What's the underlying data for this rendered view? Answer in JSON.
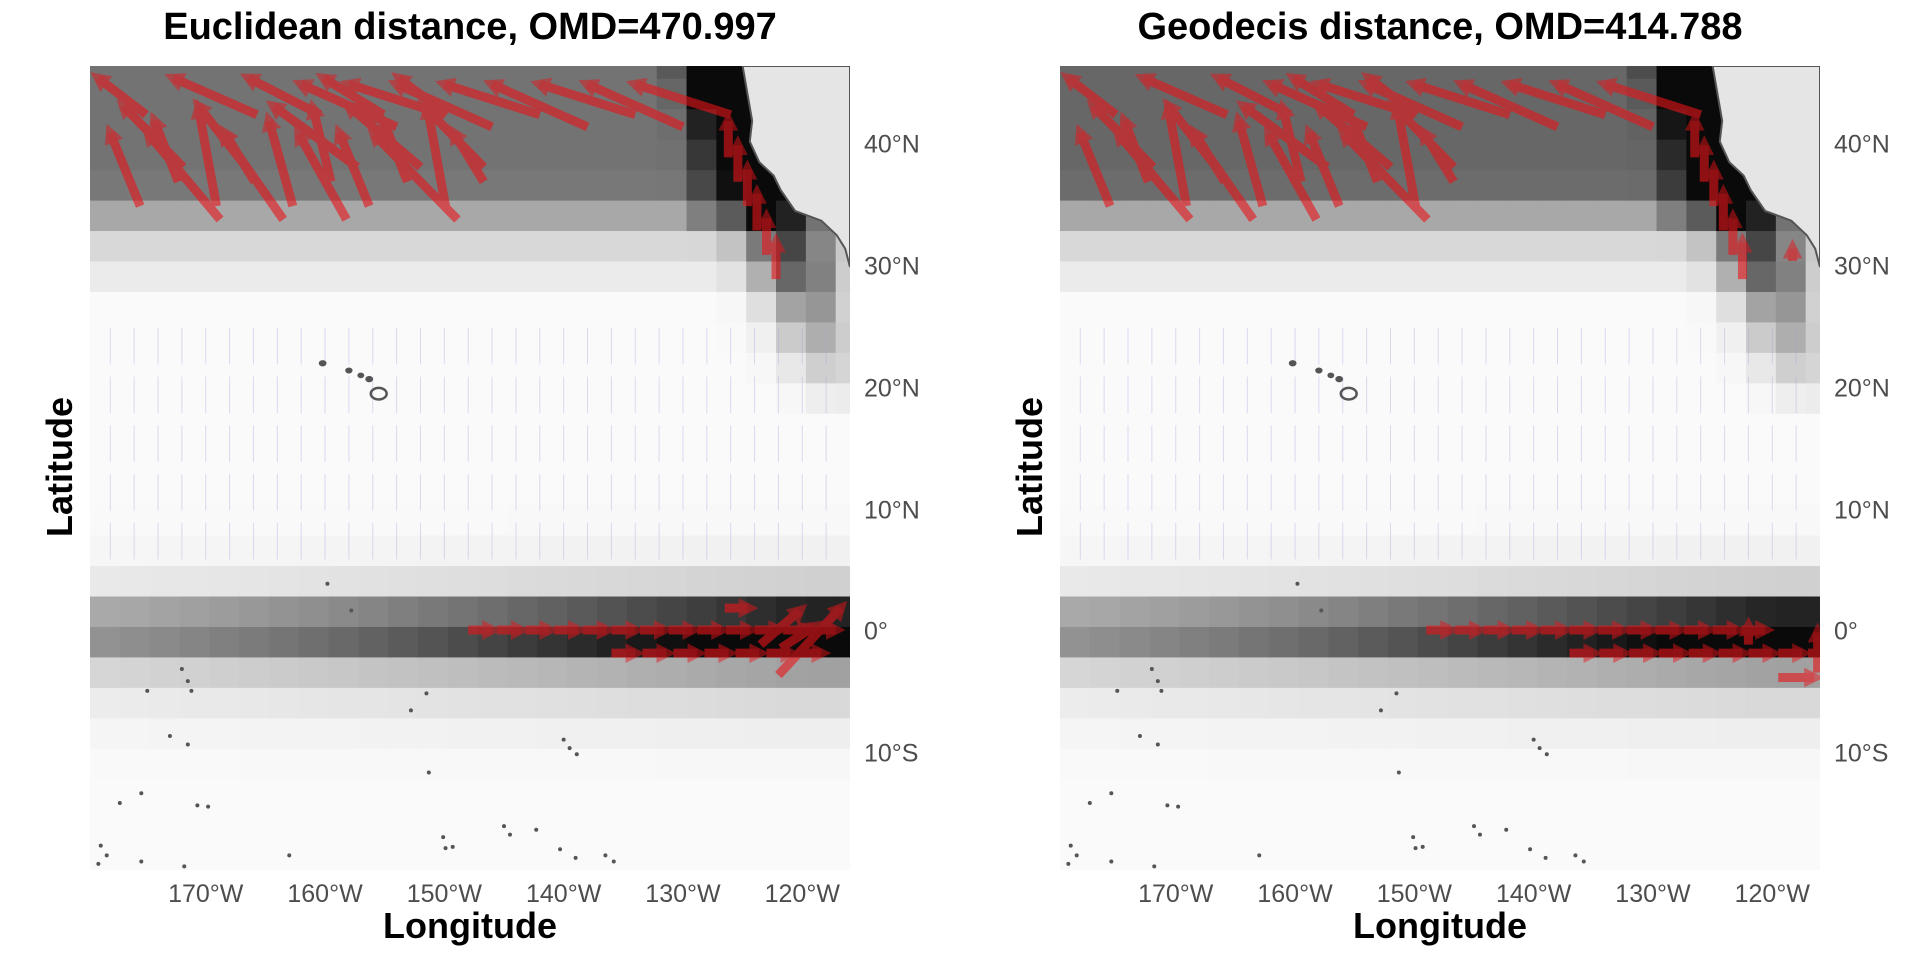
{
  "panels": [
    {
      "title": "Euclidean distance, OMD=470.997",
      "xlabel": "Longitude",
      "ylabel": "Latitude"
    },
    {
      "title": "Geodecis distance, OMD=414.788",
      "xlabel": "Longitude",
      "ylabel": "Latitude"
    }
  ],
  "axes": {
    "x_ticks": [
      {
        "value": -170,
        "label": "170°W"
      },
      {
        "value": -160,
        "label": "160°W"
      },
      {
        "value": -150,
        "label": "150°W"
      },
      {
        "value": -140,
        "label": "140°W"
      },
      {
        "value": -130,
        "label": "130°W"
      },
      {
        "value": -120,
        "label": "120°W"
      }
    ],
    "y_ticks": [
      {
        "value": 40,
        "label": "40°N"
      },
      {
        "value": 30,
        "label": "30°N"
      },
      {
        "value": 20,
        "label": "20°N"
      },
      {
        "value": 10,
        "label": "10°N"
      },
      {
        "value": 0,
        "label": "0°"
      },
      {
        "value": -10,
        "label": "10°S"
      }
    ],
    "lon_range": [
      -179.7,
      -116
    ],
    "lat_range": [
      -19.5,
      46.5
    ]
  },
  "colors": {
    "arrow": "#e8141a",
    "land": "#e5e5e5",
    "coast": "#555555",
    "faint_arrow": "#9aa0dc"
  }
}
